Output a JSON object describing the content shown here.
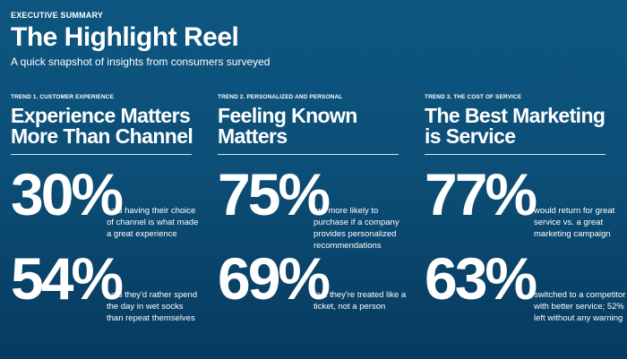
{
  "header": {
    "eyebrow": "EXECUTIVE SUMMARY",
    "title": "The Highlight Reel",
    "subtitle": "A quick snapshot of insights from consumers surveyed"
  },
  "trends": [
    {
      "label": "TREND 1. CUSTOMER EXPERIENCE",
      "title_line1": "Experience Matters",
      "title_line2": "More Than Channel",
      "stats": [
        {
          "value": "30%",
          "desc_lines": [
            "said having their choice",
            "of channel is what made",
            "a great experience"
          ]
        },
        {
          "value": "54%",
          "desc_lines": [
            "said they'd rather spend",
            "the day in wet socks",
            "than repeat themselves"
          ]
        }
      ]
    },
    {
      "label": "TREND 2. PERSONALIZED AND PERSONAL",
      "title_line1": "Feeling Known",
      "title_line2": "Matters",
      "stats": [
        {
          "value": "75%",
          "desc_lines": [
            "are more likely to",
            "purchase if a company",
            "provides personalized",
            "recommendations"
          ]
        },
        {
          "value": "69%",
          "desc_lines": [
            "feel they're treated like a",
            "ticket, not a person"
          ]
        }
      ]
    },
    {
      "label": "TREND 3. THE COST OF SERVICE",
      "title_line1": "The Best Marketing",
      "title_line2": "is Service",
      "stats": [
        {
          "value": "77%",
          "desc_lines": [
            "would return for great",
            "service vs. a great",
            "marketing campaign"
          ]
        },
        {
          "value": "63%",
          "desc_lines": [
            "switched to a competitor",
            "with better service; 52%",
            "left without any warning"
          ]
        }
      ]
    }
  ]
}
